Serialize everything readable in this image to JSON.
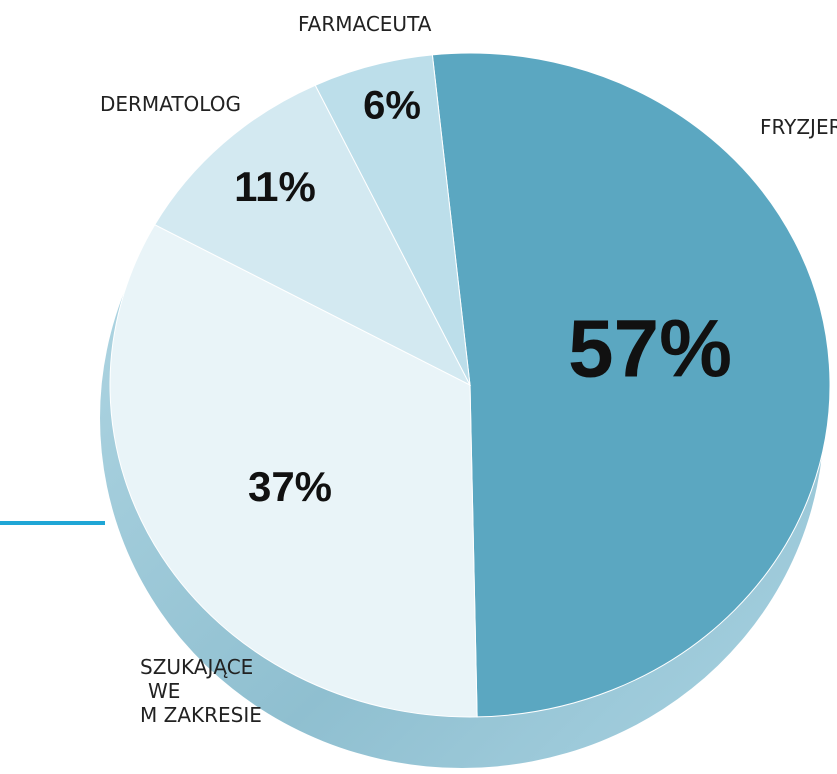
{
  "chart_data": {
    "type": "pie",
    "categories": [
      "FRYZJER",
      "SZUKAJĄCE\nWE\nM ZAKRESIE",
      "DERMATOLOG",
      "FARMACEUTA"
    ],
    "values": [
      57,
      37,
      11,
      6
    ],
    "value_labels": [
      "57%",
      "37%",
      "11%",
      "6%"
    ],
    "colors": [
      "#5ba7c1",
      "#e9f4f8",
      "#d3e9f1",
      "#bcdeea"
    ]
  }
}
